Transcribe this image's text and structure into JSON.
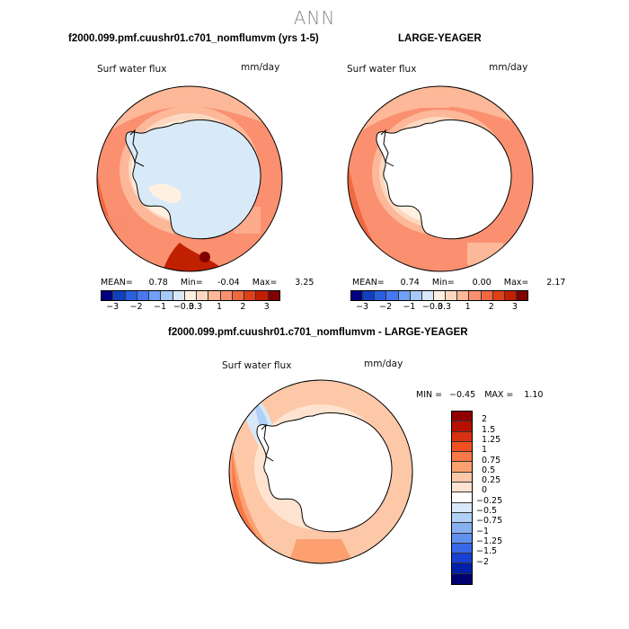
{
  "title": "ANN",
  "panels": [
    {
      "header": "f2000.099.pmf.cuushr01.c701_nomflumvm (yrs 1-5)",
      "variable": "Surf water flux",
      "units": "mm/day",
      "stats": {
        "mean_label": "MEAN=",
        "mean": "0.78",
        "min_label": "Min=",
        "min": "-0.04",
        "max_label": "Max=",
        "max": "3.25"
      },
      "ice_fill": "#d8eaf8"
    },
    {
      "header": "LARGE-YEAGER",
      "variable": "Surf water flux",
      "units": "mm/day",
      "stats": {
        "mean_label": "MEAN=",
        "mean": "0.74",
        "min_label": "Min=",
        "min": "0.00",
        "max_label": "Max=",
        "max": "2.17"
      },
      "ice_fill": "#ffffff"
    }
  ],
  "colorbar_top": {
    "colors": [
      "#000080",
      "#1040c0",
      "#2860e0",
      "#4878f0",
      "#70a0f8",
      "#a8c8f8",
      "#d8e8f8",
      "#fff0e0",
      "#fdd8c0",
      "#fcb898",
      "#fa9070",
      "#f06840",
      "#e04018",
      "#c02000",
      "#800000"
    ],
    "ticks": [
      "−3",
      "−2",
      "−1",
      "−0.3",
      "0.3",
      "1",
      "2",
      "3"
    ]
  },
  "diff_panel": {
    "header": "f2000.099.pmf.cuushr01.c701_nomflumvm - LARGE-YEAGER",
    "variable": "Surf water flux",
    "units": "mm/day",
    "min_label": "MIN =",
    "min": "−0.45",
    "max_label": "MAX =",
    "max": "1.10"
  },
  "colorbar_diff": {
    "colors": [
      "#900000",
      "#b81000",
      "#d83010",
      "#f05020",
      "#f87848",
      "#fca070",
      "#fdc8a8",
      "#fee4d0",
      "#ffffff",
      "#d8e8f8",
      "#b0d0f8",
      "#88b0f0",
      "#6090f0",
      "#3868e8",
      "#1840d0",
      "#0020a8",
      "#000070"
    ],
    "ticks": [
      "2",
      "1.5",
      "1.25",
      "1",
      "0.75",
      "0.5",
      "0.25",
      "0",
      "−0.25",
      "−0.5",
      "−0.75",
      "−1",
      "−1.25",
      "−1.5",
      "−2"
    ]
  }
}
